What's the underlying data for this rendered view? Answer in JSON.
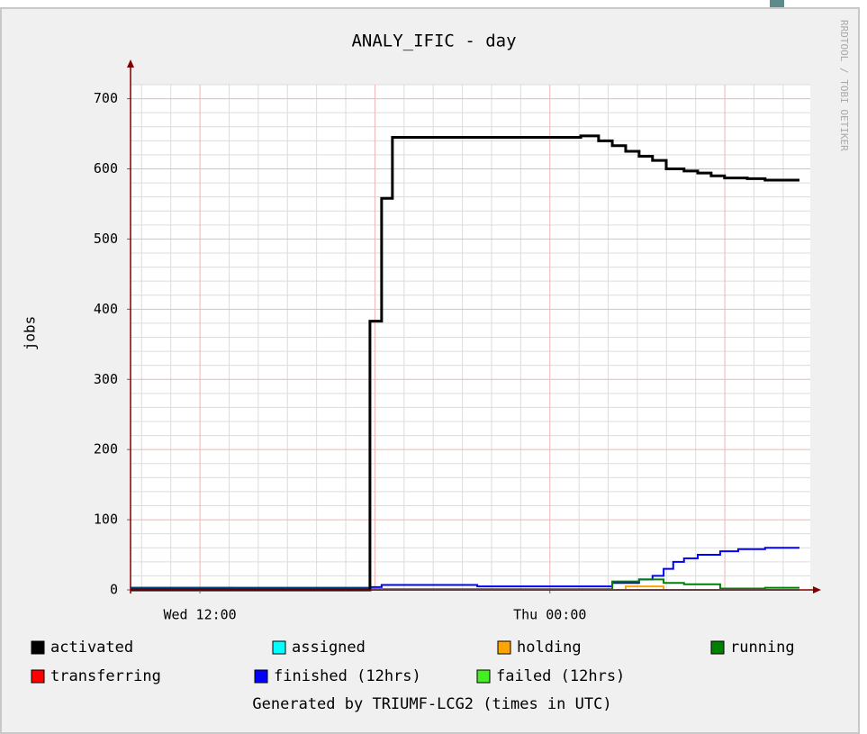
{
  "chart_data": {
    "type": "line",
    "step": true,
    "title": "ANALY_IFIC - day",
    "ylabel": "jobs",
    "footer": "Generated by TRIUMF-LCG2 (times in UTC)",
    "watermark": "RRDTOOL / TOBI OETIKER",
    "x": [
      9.62,
      13.17,
      17.83,
      18.23,
      18.6,
      21.51,
      25.06,
      25.67,
      26.14,
      26.44,
      26.6,
      27.06,
      27.52,
      27.9,
      27.99,
      28.23,
      28.6,
      29.07,
      29.53,
      29.84,
      29.99,
      30.46,
      30.77,
      31.38,
      32.56
    ],
    "series": [
      {
        "name": "activated",
        "color": "#000000",
        "values": [
          0,
          0,
          383,
          558,
          645,
          645,
          647,
          640,
          633,
          633,
          625,
          618,
          612,
          612,
          600,
          600,
          597,
          594,
          590,
          590,
          587,
          587,
          586,
          584,
          584
        ]
      },
      {
        "name": "assigned",
        "color": "#00ffff",
        "values": [
          0,
          0,
          0,
          0,
          0,
          0,
          0,
          0,
          0,
          0,
          0,
          0,
          0,
          0,
          0,
          0,
          0,
          0,
          0,
          0,
          0,
          0,
          0,
          0,
          0
        ]
      },
      {
        "name": "holding",
        "color": "#ffa500",
        "values": [
          0,
          0,
          0,
          0,
          0,
          0,
          0,
          0,
          0,
          0,
          5,
          5,
          5,
          0,
          0,
          0,
          0,
          0,
          0,
          0,
          0,
          0,
          0,
          0,
          0
        ]
      },
      {
        "name": "running",
        "color": "#008000",
        "values": [
          2,
          2,
          1,
          1,
          1,
          1,
          1,
          1,
          12,
          12,
          12,
          15,
          15,
          10,
          10,
          10,
          8,
          8,
          8,
          2,
          2,
          2,
          2,
          3,
          3
        ]
      },
      {
        "name": "transferring",
        "color": "#ff0000",
        "values": [
          0,
          0,
          0,
          0,
          0,
          0,
          0,
          0,
          0,
          0,
          0,
          0,
          0,
          0,
          0,
          0,
          0,
          0,
          0,
          0,
          0,
          0,
          0,
          0,
          0
        ]
      },
      {
        "name": "finished (12hrs)",
        "color": "#0000ff",
        "values": [
          3,
          3,
          4,
          7,
          7,
          5,
          5,
          5,
          10,
          10,
          10,
          15,
          20,
          30,
          30,
          40,
          45,
          50,
          50,
          55,
          55,
          58,
          58,
          60,
          60
        ]
      },
      {
        "name": "failed (12hrs)",
        "color": "#44ee22",
        "values": [
          3,
          0,
          0,
          0,
          0,
          0,
          0,
          0,
          0,
          0,
          0,
          0,
          0,
          0,
          0,
          0,
          0,
          0,
          0,
          0,
          0,
          0,
          0,
          0,
          0
        ]
      }
    ],
    "xlim": [
      9.62,
      32.93
    ],
    "ylim": [
      0,
      720
    ],
    "xticks": [
      {
        "value": 12,
        "label": "Wed 12:00"
      },
      {
        "value": 24,
        "label": "Thu 00:00"
      }
    ],
    "yticks": [
      0,
      100,
      200,
      300,
      400,
      500,
      600,
      700
    ],
    "x_major_grid": [
      12,
      18,
      24,
      30
    ],
    "x_minor_grid": [
      10,
      11,
      13,
      14,
      15,
      16,
      17,
      19,
      20,
      21,
      22,
      23,
      25,
      26,
      27,
      28,
      29,
      31,
      32
    ],
    "y_minor_grid": [
      20,
      40,
      60,
      80,
      120,
      140,
      160,
      180,
      220,
      240,
      260,
      280,
      320,
      340,
      360,
      380,
      420,
      440,
      460,
      480,
      520,
      540,
      560,
      580,
      620,
      640,
      660,
      680,
      720
    ],
    "grid": true
  }
}
